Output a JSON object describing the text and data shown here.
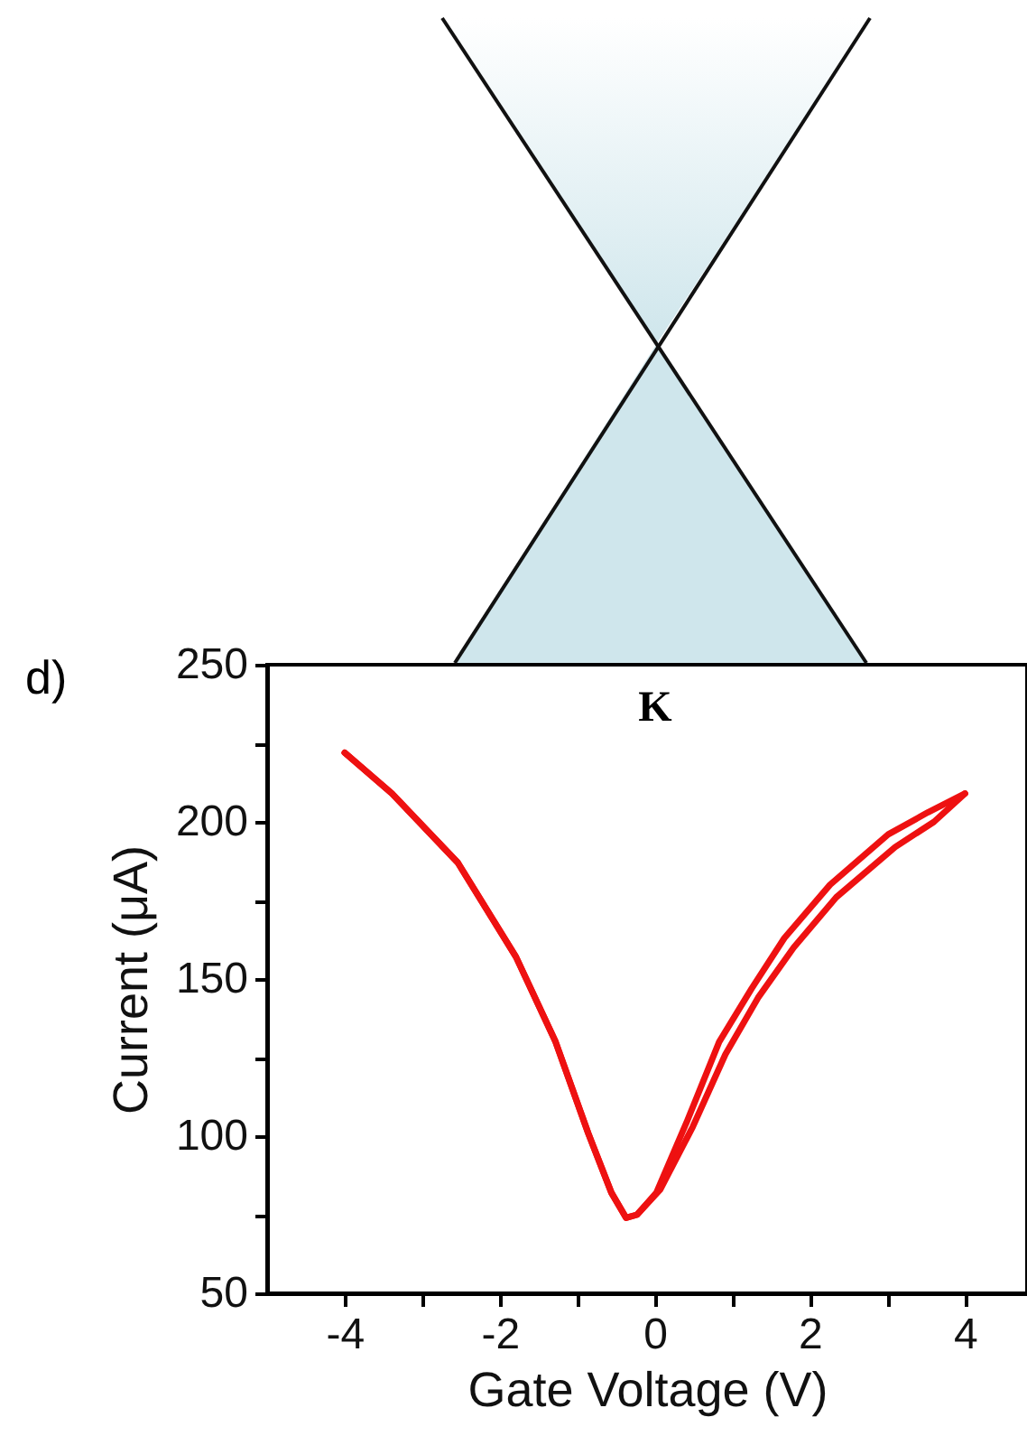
{
  "chart_data": {
    "type": "line",
    "xlabel": "Gate Voltage (V)",
    "ylabel": "Current (μA)",
    "xlim": [
      -5,
      4.8
    ],
    "ylim": [
      50,
      250
    ],
    "xticks": [
      -4,
      {
        "value": -3,
        "label": null
      },
      -2,
      {
        "value": -1,
        "label": null
      },
      0,
      {
        "value": 1,
        "label": null
      },
      2,
      {
        "value": 3,
        "label": null
      },
      4
    ],
    "yticks": [
      50,
      {
        "value": 75,
        "label": null
      },
      100,
      {
        "value": 125,
        "label": null
      },
      150,
      {
        "value": 175,
        "label": null
      },
      200,
      {
        "value": 225,
        "label": null
      },
      250
    ],
    "grid": false,
    "line_style": "solid",
    "marker": "none",
    "annotations": [
      "d)",
      "K"
    ],
    "series": [
      {
        "color": "#ee1111",
        "x": [
          -4,
          -3.39,
          -2.54,
          -1.79,
          -1.28,
          -0.86,
          -0.56,
          -0.37,
          -0.23,
          0.02,
          0.42,
          0.83,
          1.25,
          1.67,
          2.26,
          3.01,
          3.52,
          4
        ],
        "values": [
          222,
          209,
          187,
          157,
          130,
          101,
          82,
          74,
          75,
          82,
          105,
          130,
          147,
          163,
          180,
          196,
          203,
          209
        ]
      },
      {
        "color": "#ee1111",
        "x": [
          -4,
          -3.39,
          -2.54,
          -1.79,
          -1.28,
          -0.86,
          -0.56,
          -0.37,
          -0.23,
          0.07,
          0.49,
          0.91,
          1.33,
          1.79,
          2.34,
          3.1,
          3.6,
          4
        ],
        "values": [
          222,
          209,
          187,
          157,
          130,
          101,
          82,
          74,
          75,
          83,
          103,
          126,
          144,
          160,
          176,
          192,
          200,
          209
        ]
      }
    ]
  }
}
